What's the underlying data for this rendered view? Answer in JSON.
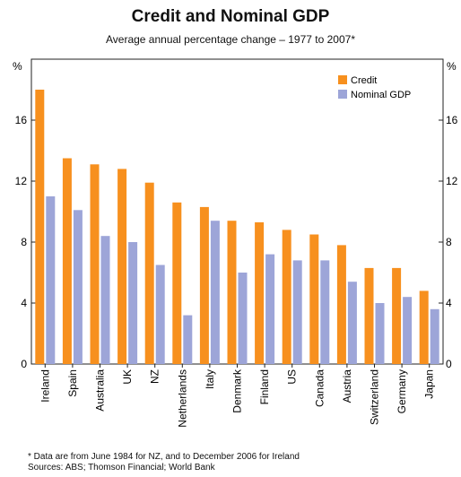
{
  "header": {
    "title": "Credit and Nominal GDP",
    "subtitle": "Average annual percentage change – 1977 to 2007*"
  },
  "notes": {
    "footnote": "*  Data are from June 1984 for NZ, and to December 2006 for Ireland",
    "sources": "Sources: ABS; Thomson Financial; World Bank"
  },
  "colors": {
    "credit": "#f7901e",
    "nominal_gdp": "#9da5d8"
  },
  "chart_data": {
    "type": "bar",
    "title": "Credit and Nominal GDP",
    "subtitle": "Average annual percentage change – 1977 to 2007*",
    "unit_left": "%",
    "unit_right": "%",
    "ylim": [
      0,
      20
    ],
    "yticks": [
      0,
      4,
      8,
      12,
      16
    ],
    "grid": false,
    "legend_position": "top-right",
    "categories": [
      "Ireland",
      "Spain",
      "Australia",
      "UK",
      "NZ",
      "Netherlands",
      "Italy",
      "Denmark",
      "Finland",
      "US",
      "Canada",
      "Austria",
      "Switzerland",
      "Germany",
      "Japan"
    ],
    "series": [
      {
        "name": "Credit",
        "values": [
          18.0,
          13.5,
          13.1,
          12.8,
          11.9,
          10.6,
          10.3,
          9.4,
          9.3,
          8.8,
          8.5,
          7.8,
          6.3,
          6.3,
          4.8
        ]
      },
      {
        "name": "Nominal GDP",
        "values": [
          11.0,
          10.1,
          8.4,
          8.0,
          6.5,
          3.2,
          9.4,
          6.0,
          7.2,
          6.8,
          6.8,
          5.4,
          4.0,
          4.4,
          3.6
        ]
      }
    ]
  }
}
